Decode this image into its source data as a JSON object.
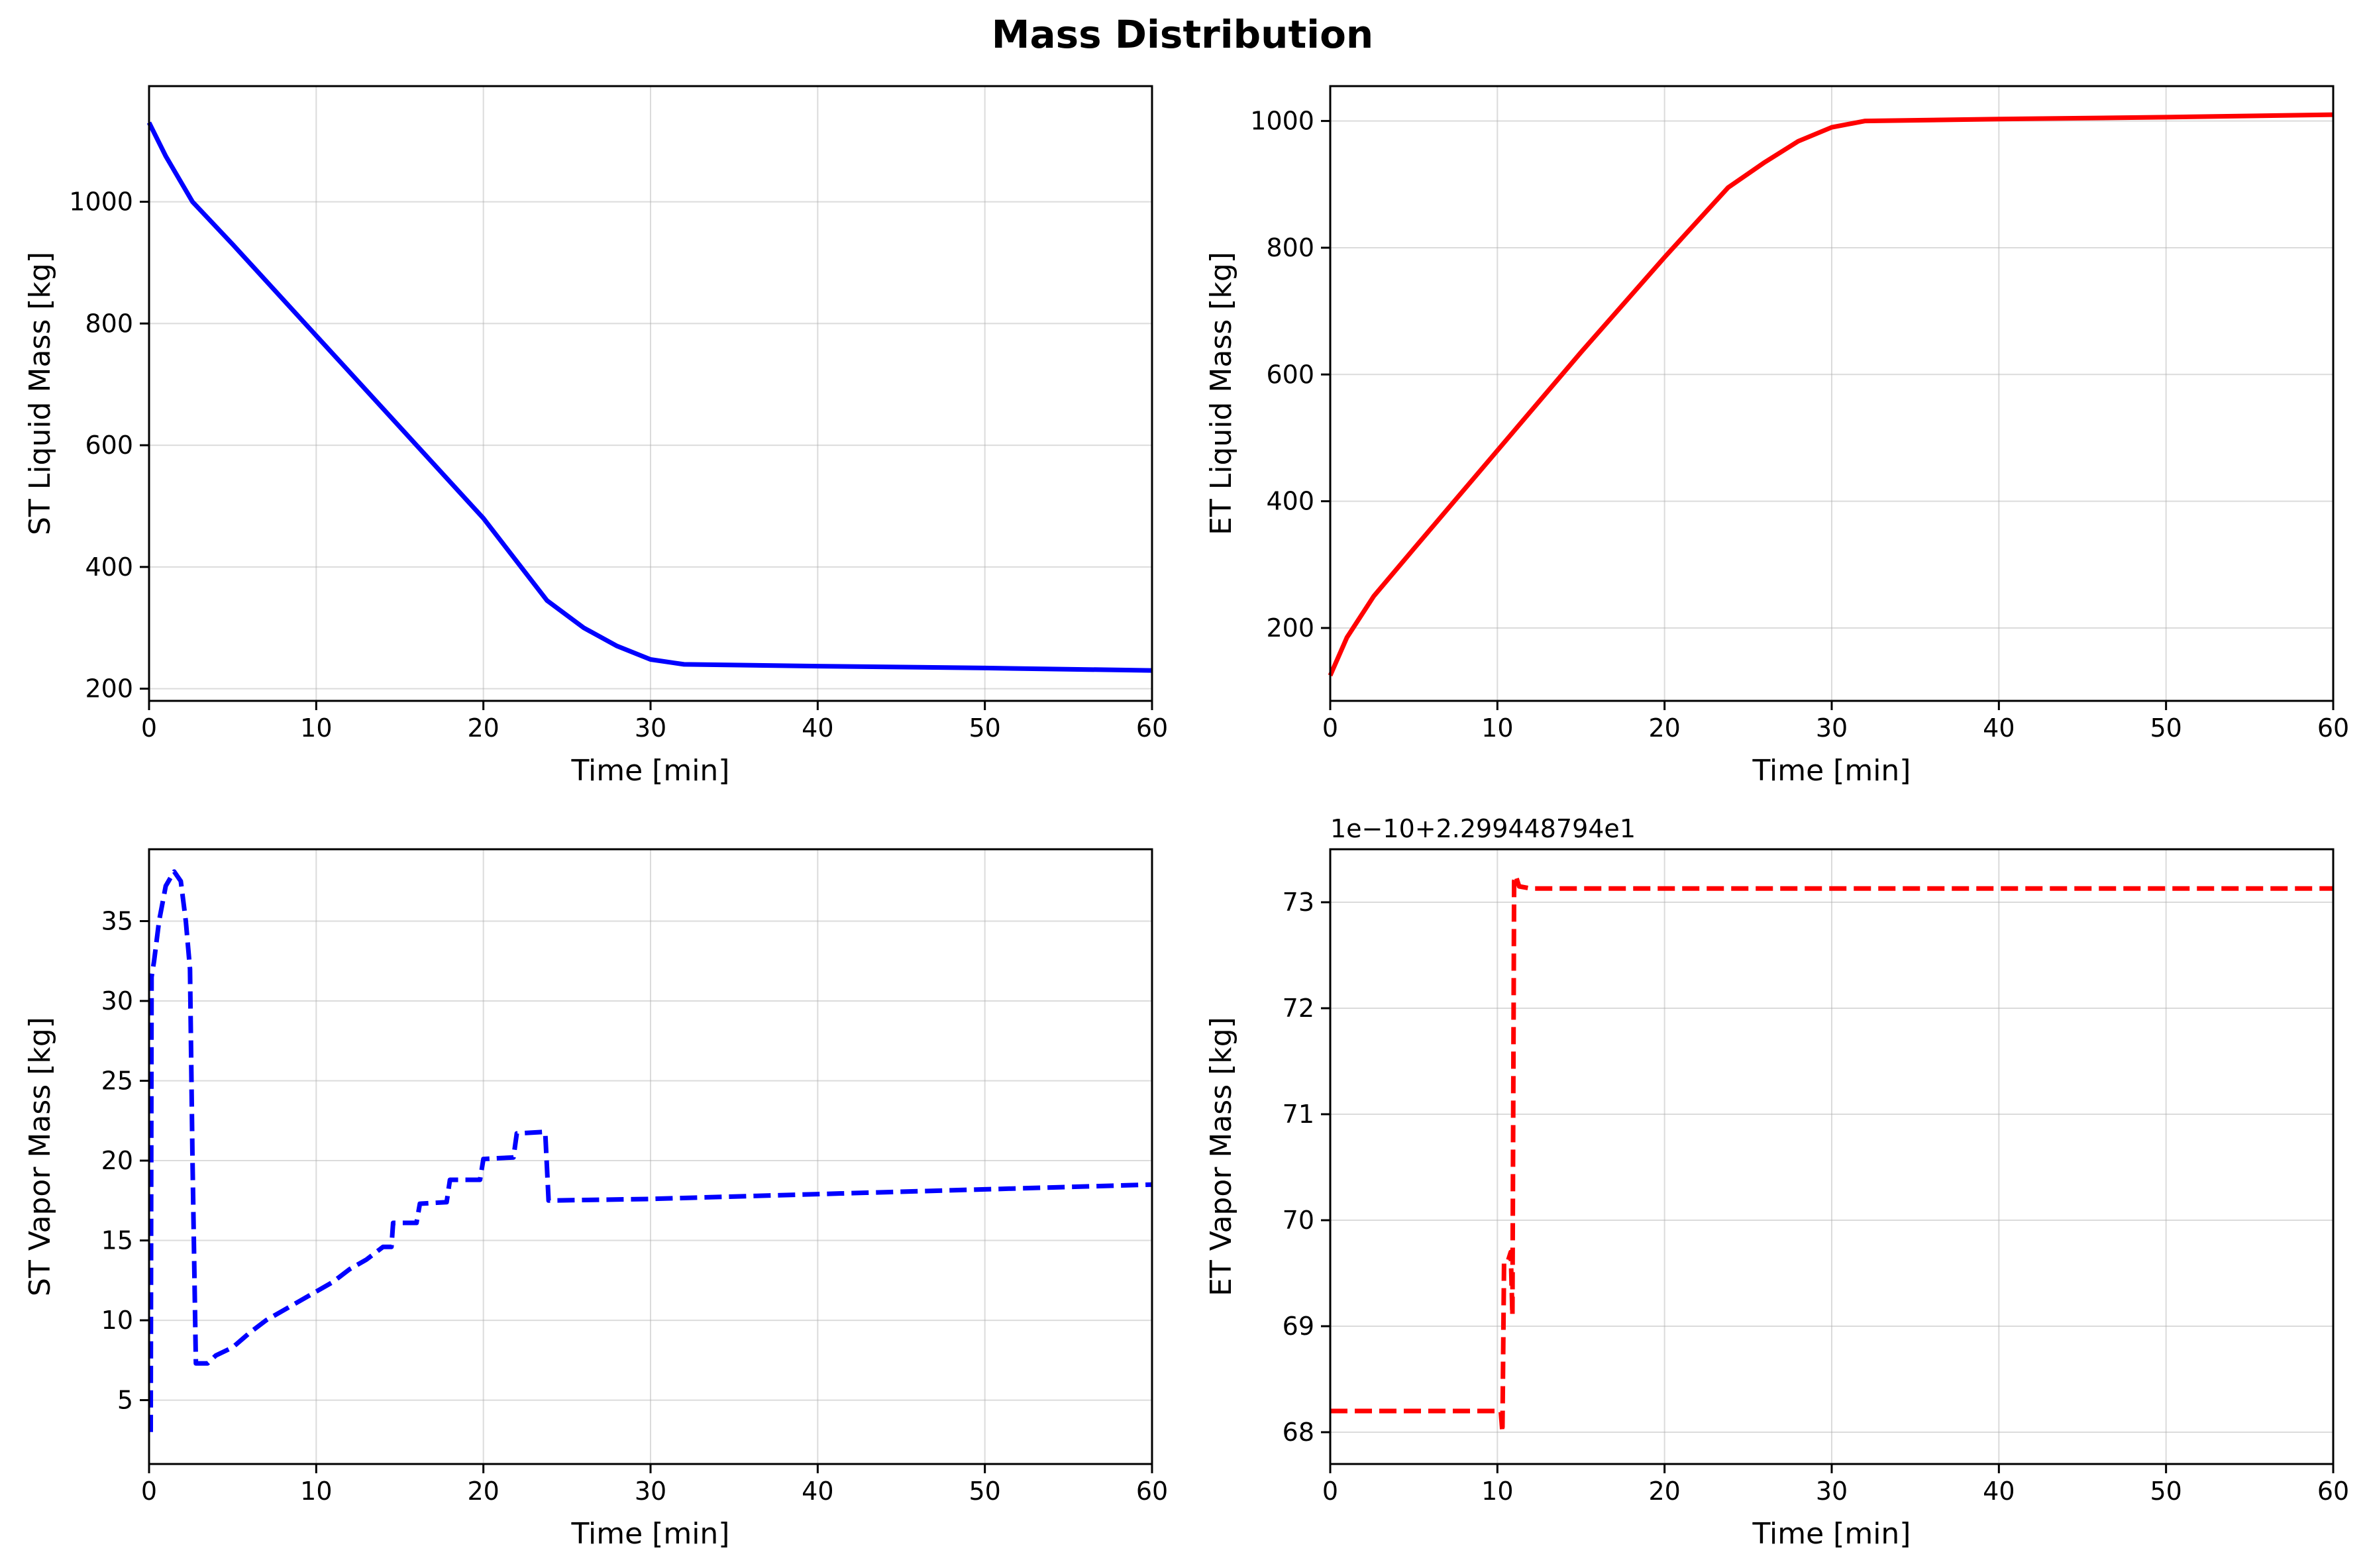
{
  "figure": {
    "title": "Mass Distribution"
  },
  "chart_data": [
    {
      "type": "line",
      "id": "st-liquid",
      "xlabel": "Time [min]",
      "ylabel": "ST Liquid Mass [kg]",
      "xlim": [
        0,
        60
      ],
      "ylim": [
        180,
        1190
      ],
      "xticks": [
        0,
        10,
        20,
        30,
        40,
        50,
        60
      ],
      "yticks": [
        200,
        400,
        600,
        800,
        1000
      ],
      "grid": true,
      "series": [
        {
          "color": "#0000ff",
          "linestyle": "solid",
          "points": [
            [
              0,
              1130
            ],
            [
              1,
              1075
            ],
            [
              2.6,
              1000
            ],
            [
              5,
              930
            ],
            [
              10,
              780
            ],
            [
              15,
              630
            ],
            [
              20,
              480
            ],
            [
              23.8,
              345
            ],
            [
              26,
              300
            ],
            [
              28,
              270
            ],
            [
              30,
              248
            ],
            [
              32,
              240
            ],
            [
              40,
              237
            ],
            [
              50,
              234
            ],
            [
              60,
              230
            ]
          ]
        }
      ]
    },
    {
      "type": "line",
      "id": "et-liquid",
      "xlabel": "Time [min]",
      "ylabel": "ET Liquid Mass [kg]",
      "xlim": [
        0,
        60
      ],
      "ylim": [
        85,
        1055
      ],
      "xticks": [
        0,
        10,
        20,
        30,
        40,
        50,
        60
      ],
      "yticks": [
        200,
        400,
        600,
        800,
        1000
      ],
      "grid": true,
      "series": [
        {
          "color": "#ff0000",
          "linestyle": "solid",
          "points": [
            [
              0,
              125
            ],
            [
              1,
              185
            ],
            [
              2.6,
              250
            ],
            [
              5,
              325
            ],
            [
              10,
              480
            ],
            [
              15,
              635
            ],
            [
              20,
              785
            ],
            [
              23.8,
              895
            ],
            [
              26,
              935
            ],
            [
              28,
              968
            ],
            [
              30,
              990
            ],
            [
              32,
              1000
            ],
            [
              40,
              1003
            ],
            [
              50,
              1006
            ],
            [
              60,
              1010
            ]
          ]
        }
      ]
    },
    {
      "type": "line",
      "id": "st-vapor",
      "xlabel": "Time [min]",
      "ylabel": "ST Vapor Mass [kg]",
      "xlim": [
        0,
        60
      ],
      "ylim": [
        1,
        39.5
      ],
      "xticks": [
        0,
        10,
        20,
        30,
        40,
        50,
        60
      ],
      "yticks": [
        5,
        10,
        15,
        20,
        25,
        30,
        35
      ],
      "grid": true,
      "series": [
        {
          "color": "#0000ff",
          "linestyle": "dashed",
          "points": [
            [
              0.1,
              3
            ],
            [
              0.15,
              31.5
            ],
            [
              0.3,
              32.5
            ],
            [
              0.6,
              35
            ],
            [
              1,
              37.2
            ],
            [
              1.5,
              38.1
            ],
            [
              1.9,
              37.5
            ],
            [
              2.2,
              35
            ],
            [
              2.45,
              32
            ],
            [
              2.6,
              20
            ],
            [
              2.8,
              7.3
            ],
            [
              3.5,
              7.3
            ],
            [
              4,
              7.8
            ],
            [
              5,
              8.3
            ],
            [
              6,
              9.2
            ],
            [
              7,
              10
            ],
            [
              8,
              10.6
            ],
            [
              9,
              11.2
            ],
            [
              10,
              11.8
            ],
            [
              11,
              12.4
            ],
            [
              12,
              13.2
            ],
            [
              13,
              13.8
            ],
            [
              14,
              14.6
            ],
            [
              14.5,
              14.6
            ],
            [
              14.6,
              16.1
            ],
            [
              16,
              16.1
            ],
            [
              16.2,
              17.3
            ],
            [
              17.8,
              17.4
            ],
            [
              18,
              18.8
            ],
            [
              19.8,
              18.8
            ],
            [
              20,
              20.1
            ],
            [
              21.8,
              20.2
            ],
            [
              22,
              21.7
            ],
            [
              23.7,
              21.8
            ],
            [
              23.9,
              17.5
            ],
            [
              30,
              17.6
            ],
            [
              40,
              17.9
            ],
            [
              50,
              18.2
            ],
            [
              60,
              18.5
            ]
          ]
        }
      ]
    },
    {
      "type": "line",
      "id": "et-vapor",
      "xlabel": "Time [min]",
      "ylabel": "ET Vapor Mass [kg]",
      "offset_text": "1e−10+2.299448794e1",
      "xlim": [
        0,
        60
      ],
      "ylim": [
        67.7,
        73.5
      ],
      "xticks": [
        0,
        10,
        20,
        30,
        40,
        50,
        60
      ],
      "yticks": [
        68,
        69,
        70,
        71,
        72,
        73
      ],
      "grid": true,
      "series": [
        {
          "color": "#ff0000",
          "linestyle": "dashed",
          "points": [
            [
              0,
              68.2
            ],
            [
              10.2,
              68.2
            ],
            [
              10.3,
              68.0
            ],
            [
              10.4,
              69.6
            ],
            [
              10.6,
              69.6
            ],
            [
              10.8,
              69.7
            ],
            [
              10.9,
              69.1
            ],
            [
              11.0,
              73.2
            ],
            [
              11.1,
              73.25
            ],
            [
              11.3,
              73.15
            ],
            [
              12,
              73.13
            ],
            [
              60,
              73.13
            ]
          ]
        }
      ]
    }
  ]
}
